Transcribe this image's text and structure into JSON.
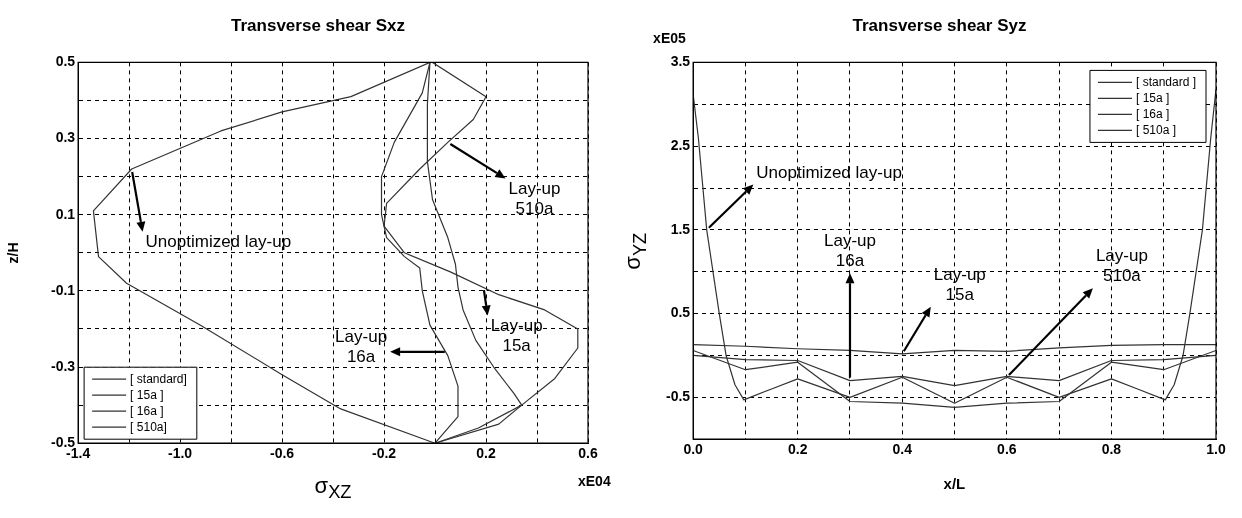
{
  "chart_data": [
    {
      "type": "line",
      "title": "Transverse shear Sxz",
      "xlabel": "σ$_{XZ}$",
      "ylabel": "z/H",
      "xlim": [
        -1.4,
        0.6
      ],
      "xticks": [
        -1.4,
        {
          "value": -1.2,
          "label": null
        },
        {
          "value": -1,
          "label": "-1.0"
        },
        {
          "value": -0.8,
          "label": null
        },
        -0.6,
        {
          "value": -0.4,
          "label": null
        },
        -0.2,
        {
          "value": 0,
          "label": null
        },
        0.2,
        {
          "value": 0.4,
          "label": null
        },
        0.6
      ],
      "ylim": [
        -0.5,
        0.5
      ],
      "yticks": [
        -0.5,
        {
          "value": -0.4,
          "label": null
        },
        -0.3,
        {
          "value": -0.2,
          "label": null
        },
        -0.1,
        {
          "value": 0,
          "label": null
        },
        0.1,
        {
          "value": 0.2,
          "label": null
        },
        0.3,
        {
          "value": 0.4,
          "label": null
        },
        0.5
      ],
      "grid": true,
      "legend": "bottom left",
      "marker": "none",
      "line_style": "solid",
      "series": [
        {
          "name": "[ standard]",
          "color": "#333333",
          "x": [
            -0.02,
            -0.33,
            -0.6,
            -0.84,
            -1.19,
            -1.34,
            -1.32,
            -1.21,
            -0.92,
            -0.6,
            -0.37,
            0.0
          ],
          "values": [
            0.5,
            0.41,
            0.37,
            0.32,
            0.22,
            0.11,
            -0.01,
            -0.08,
            -0.19,
            -0.32,
            -0.41,
            -0.5
          ]
        },
        {
          "name": "[ 15a ]",
          "color": "#333333",
          "x": [
            -0.02,
            -0.03,
            -0.03,
            -0.01,
            0.05,
            0.08,
            0.09,
            0.11,
            0.16,
            0.23,
            0.31,
            0.34,
            0.25,
            0.0
          ],
          "values": [
            0.5,
            0.39,
            0.24,
            0.14,
            0.04,
            -0.03,
            -0.09,
            -0.15,
            -0.23,
            -0.3,
            -0.37,
            -0.4,
            -0.45,
            -0.5
          ]
        },
        {
          "name": "[ 16a ]",
          "color": "#333333",
          "x": [
            -0.02,
            -0.05,
            -0.16,
            -0.21,
            -0.21,
            -0.19,
            -0.12,
            -0.06,
            -0.05,
            -0.02,
            0.05,
            0.09,
            0.09,
            0.0
          ],
          "values": [
            0.5,
            0.42,
            0.29,
            0.2,
            0.1,
            0.04,
            -0.01,
            -0.04,
            -0.1,
            -0.19,
            -0.27,
            -0.35,
            -0.43,
            -0.5
          ]
        },
        {
          "name": "[ 510a]",
          "color": "#333333",
          "x": [
            -0.01,
            0.2,
            0.15,
            0.05,
            -0.06,
            -0.19,
            -0.2,
            -0.12,
            0.06,
            0.25,
            0.43,
            0.56,
            0.56,
            0.47,
            0.34,
            0.17,
            0.0
          ],
          "values": [
            0.5,
            0.41,
            0.35,
            0.29,
            0.22,
            0.13,
            0.07,
            0.0,
            -0.05,
            -0.11,
            -0.15,
            -0.2,
            -0.25,
            -0.33,
            -0.4,
            -0.46,
            -0.5
          ]
        }
      ],
      "annotations": [
        {
          "text": "Unoptimized lay-up",
          "x": -1.19,
          "y": 0.22
        },
        {
          "text": "Lay-up\n510a",
          "x": 0.05,
          "y": 0.29
        },
        {
          "text": "Lay-up\n15a",
          "x": 0.19,
          "y": -0.09
        },
        {
          "text": "Lay-up\n16a",
          "x": 0.05,
          "y": -0.26
        },
        "xE04"
      ]
    },
    {
      "type": "line",
      "title": "Transverse shear Syz",
      "xlabel": "x/L",
      "ylabel": "σ$_{YZ}$",
      "xlim": [
        0,
        1
      ],
      "xticks": [
        {
          "value": 0,
          "label": "0.0"
        },
        {
          "value": 0.1,
          "label": null
        },
        0.2,
        {
          "value": 0.3,
          "label": null
        },
        0.4,
        {
          "value": 0.5,
          "label": null
        },
        0.6,
        {
          "value": 0.7,
          "label": null
        },
        0.8,
        {
          "value": 0.9,
          "label": null
        },
        {
          "value": 1,
          "label": "1.0"
        }
      ],
      "ylim": [
        -1,
        3.5
      ],
      "yticks": [
        {
          "value": -1,
          "label": null
        },
        -0.5,
        {
          "value": 0,
          "label": null
        },
        0.5,
        {
          "value": 1,
          "label": null
        },
        1.5,
        {
          "value": 2,
          "label": null
        },
        2.5,
        {
          "value": 3,
          "label": null
        },
        3.5
      ],
      "grid": true,
      "legend": "top right",
      "marker": "none",
      "line_style": "solid",
      "series": [
        {
          "name": "[ standard ]",
          "color": "#333333",
          "x": [
            0,
            0.01,
            0.026,
            0.05,
            0.063,
            0.08,
            0.097,
            0.15,
            0.2,
            0.3,
            0.4,
            0.5,
            0.6,
            0.7,
            0.8,
            0.85,
            0.903,
            0.92,
            0.937,
            0.95,
            0.974,
            0.99,
            1
          ],
          "values": [
            3.12,
            2.6,
            1.5,
            0.5,
            0.0,
            -0.35,
            -0.53,
            -0.4,
            -0.28,
            -0.5,
            -0.26,
            -0.57,
            -0.26,
            -0.5,
            -0.28,
            -0.4,
            -0.53,
            -0.35,
            0.0,
            0.5,
            1.5,
            2.6,
            3.18
          ]
        },
        {
          "name": "[ 15a ]",
          "color": "#333333",
          "x": [
            0,
            0.1,
            0.2,
            0.3,
            0.4,
            0.5,
            0.6,
            0.7,
            0.8,
            0.9,
            1
          ],
          "values": [
            0.13,
            0.11,
            0.08,
            0.06,
            0.02,
            0.06,
            0.05,
            0.09,
            0.12,
            0.13,
            0.13
          ]
        },
        {
          "name": "[ 16a ]",
          "color": "#333333",
          "x": [
            0,
            0.1,
            0.2,
            0.3,
            0.4,
            0.5,
            0.6,
            0.7,
            0.8,
            0.9,
            1
          ],
          "values": [
            0.0,
            -0.05,
            -0.06,
            -0.3,
            -0.25,
            -0.36,
            -0.25,
            -0.3,
            -0.06,
            -0.05,
            0.0
          ]
        },
        {
          "name": "[ 510a ]",
          "color": "#333333",
          "x": [
            0,
            0.1,
            0.2,
            0.3,
            0.4,
            0.5,
            0.6,
            0.7,
            0.8,
            0.9,
            1
          ],
          "values": [
            0.06,
            -0.17,
            -0.08,
            -0.55,
            -0.57,
            -0.62,
            -0.57,
            -0.55,
            -0.08,
            -0.17,
            0.06
          ]
        }
      ],
      "annotations": [
        {
          "text": "Unoptimized lay-up",
          "x": 0.026,
          "y": 1.5
        },
        {
          "text": "Lay-up\n16a",
          "x": 0.3,
          "y": -0.3
        },
        {
          "text": "Lay-up\n15a",
          "x": 0.4,
          "y": 0.02
        },
        {
          "text": "Lay-up\n510a",
          "x": 0.6,
          "y": -0.26
        },
        "xE05"
      ]
    }
  ]
}
